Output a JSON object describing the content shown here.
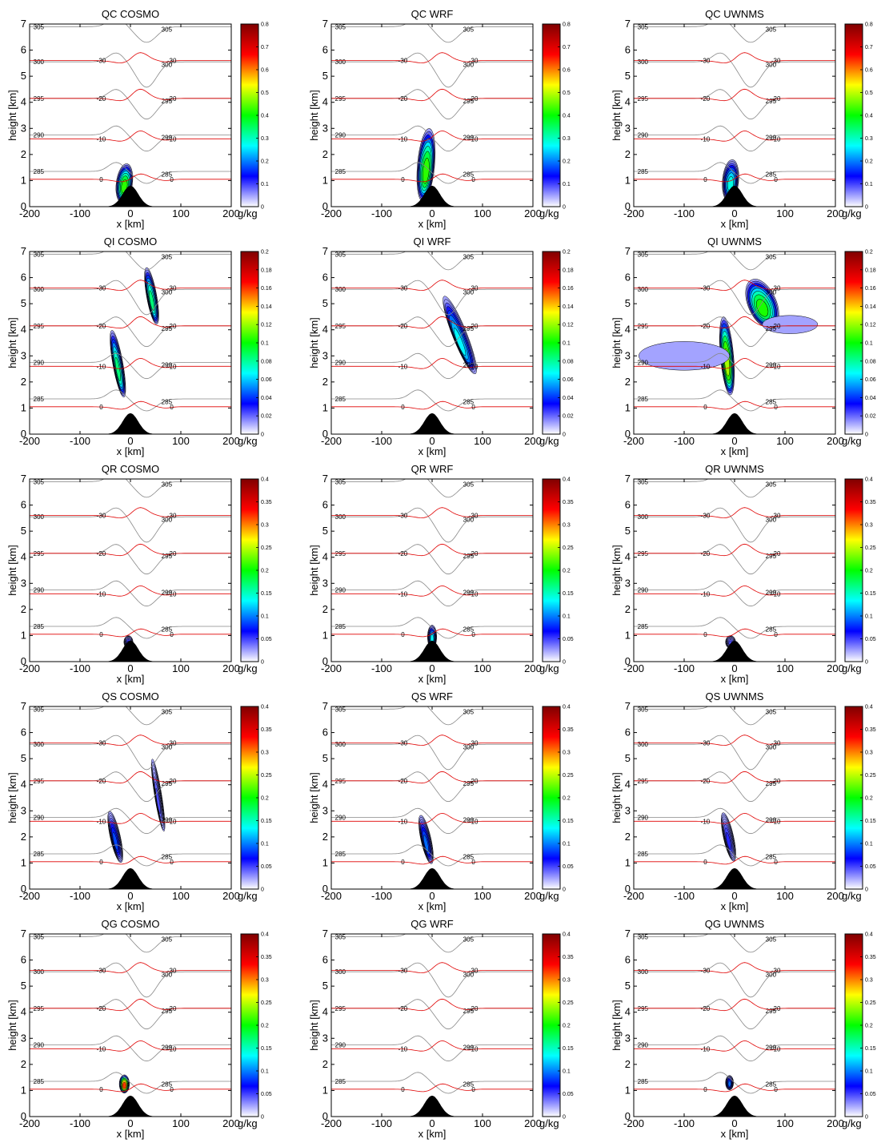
{
  "figure": {
    "rows": [
      {
        "variable": "QC",
        "cbar_max": 0.8,
        "cbar_ticks": [
          "0",
          "0.1",
          "0.2",
          "0.3",
          "0.4",
          "0.5",
          "0.6",
          "0.7",
          "0.8"
        ]
      },
      {
        "variable": "QI",
        "cbar_max": 0.2,
        "cbar_ticks": [
          "0",
          "0.02",
          "0.04",
          "0.06",
          "0.08",
          "0.1",
          "0.12",
          "0.14",
          "0.16",
          "0.18",
          "0.2"
        ]
      },
      {
        "variable": "QR",
        "cbar_max": 0.4,
        "cbar_ticks": [
          "0",
          "0.05",
          "0.1",
          "0.15",
          "0.2",
          "0.25",
          "0.3",
          "0.35",
          "0.4"
        ]
      },
      {
        "variable": "QS",
        "cbar_max": 0.4,
        "cbar_ticks": [
          "0",
          "0.05",
          "0.1",
          "0.15",
          "0.2",
          "0.25",
          "0.3",
          "0.35",
          "0.4"
        ]
      },
      {
        "variable": "QG",
        "cbar_max": 0.4,
        "cbar_ticks": [
          "0",
          "0.05",
          "0.1",
          "0.15",
          "0.2",
          "0.25",
          "0.3",
          "0.35",
          "0.4"
        ]
      }
    ],
    "models": [
      "COSMO",
      "WRF",
      "UWNMS"
    ],
    "xlabel": "x [km]",
    "ylabel": "height [km]",
    "cbar_unit": "g/kg",
    "xticks": [
      "-200",
      "-100",
      "0",
      "100",
      "200"
    ],
    "yticks": [
      "0",
      "1",
      "2",
      "3",
      "4",
      "5",
      "6",
      "7"
    ]
  },
  "chart_data": {
    "type": "contour-panels",
    "xlim": [
      -200,
      200
    ],
    "ylim": [
      0,
      7
    ],
    "colormap": [
      "#ffffff",
      "#0000ff",
      "#00ffff",
      "#00ff00",
      "#ffff00",
      "#ff0000",
      "#800000"
    ],
    "theta_isentropes": [
      {
        "label": "285",
        "base": 1.35,
        "perturb": -0.45
      },
      {
        "label": "290",
        "base": 2.75,
        "perturb": -0.6
      },
      {
        "label": "295",
        "base": 4.15,
        "perturb": -0.75
      },
      {
        "label": "300",
        "base": 5.55,
        "perturb": -0.9
      },
      {
        "label": "305",
        "base": 6.9,
        "perturb": -0.55
      }
    ],
    "temperature_isotherms": [
      {
        "label": "0",
        "base": 1.05,
        "perturb": 0.25
      },
      {
        "label": "-10",
        "base": 2.6,
        "perturb": 0.35
      },
      {
        "label": "-20",
        "base": 4.15,
        "perturb": 0.4
      },
      {
        "label": "-30",
        "base": 5.6,
        "perturb": 0.35
      }
    ],
    "mountain": {
      "center_km": 0,
      "height_km": 0.8,
      "halfwidth_km": 22
    },
    "panels": [
      {
        "row": "QC",
        "model": "COSMO",
        "peak": 0.45,
        "blobs": [
          {
            "x": -12,
            "y": 0.9,
            "rx": 16,
            "ry": 0.75,
            "tilt": -0.15,
            "peak": 0.45
          }
        ]
      },
      {
        "row": "QC",
        "model": "WRF",
        "peak": 0.45,
        "blobs": [
          {
            "x": -12,
            "y": 1.6,
            "rx": 17,
            "ry": 1.4,
            "tilt": -0.1,
            "peak": 0.45
          }
        ]
      },
      {
        "row": "QC",
        "model": "UWNMS",
        "peak": 0.3,
        "blobs": [
          {
            "x": -8,
            "y": 1.0,
            "rx": 16,
            "ry": 0.8,
            "tilt": -0.1,
            "peak": 0.3
          }
        ]
      },
      {
        "row": "QI",
        "model": "COSMO",
        "peak": 0.09,
        "blobs": [
          {
            "x": -25,
            "y": 2.7,
            "rx": 10,
            "ry": 1.3,
            "tilt": 0.2,
            "peak": 0.09
          },
          {
            "x": 42,
            "y": 5.3,
            "rx": 10,
            "ry": 1.1,
            "tilt": 0.2,
            "peak": 0.09
          }
        ]
      },
      {
        "row": "QI",
        "model": "WRF",
        "peak": 0.07,
        "blobs": [
          {
            "x": 55,
            "y": 3.8,
            "rx": 14,
            "ry": 1.6,
            "tilt": 0.45,
            "peak": 0.07
          }
        ]
      },
      {
        "row": "QI",
        "model": "UWNMS",
        "peak": 0.13,
        "blobs": [
          {
            "x": -15,
            "y": 3.0,
            "rx": 13,
            "ry": 1.5,
            "tilt": 0.1,
            "peak": 0.13
          },
          {
            "x": 55,
            "y": 5.0,
            "rx": 28,
            "ry": 1.0,
            "tilt": 0.5,
            "peak": 0.11
          },
          {
            "x": -100,
            "y": 3.0,
            "rx": 90,
            "ry": 0.55,
            "tilt": 0.0,
            "peak": 0.01
          },
          {
            "x": 110,
            "y": 4.2,
            "rx": 55,
            "ry": 0.35,
            "tilt": 0.0,
            "peak": 0.01
          }
        ]
      },
      {
        "row": "QR",
        "model": "COSMO",
        "peak": 0.06,
        "blobs": [
          {
            "x": -4,
            "y": 0.75,
            "rx": 9,
            "ry": 0.25,
            "tilt": 0.0,
            "peak": 0.06
          }
        ]
      },
      {
        "row": "QR",
        "model": "WRF",
        "peak": 0.14,
        "blobs": [
          {
            "x": 0,
            "y": 0.95,
            "rx": 9,
            "ry": 0.45,
            "tilt": 0.0,
            "peak": 0.14
          }
        ]
      },
      {
        "row": "QR",
        "model": "UWNMS",
        "peak": 0.05,
        "blobs": [
          {
            "x": -8,
            "y": 0.75,
            "rx": 10,
            "ry": 0.25,
            "tilt": 0.0,
            "peak": 0.05
          }
        ]
      },
      {
        "row": "QS",
        "model": "COSMO",
        "peak": 0.09,
        "blobs": [
          {
            "x": -30,
            "y": 2.0,
            "rx": 10,
            "ry": 1.0,
            "tilt": 0.25,
            "peak": 0.09
          },
          {
            "x": 55,
            "y": 3.6,
            "rx": 7,
            "ry": 1.4,
            "tilt": 0.18,
            "peak": 0.05
          }
        ]
      },
      {
        "row": "QS",
        "model": "WRF",
        "peak": 0.1,
        "blobs": [
          {
            "x": -12,
            "y": 1.9,
            "rx": 10,
            "ry": 0.95,
            "tilt": 0.25,
            "peak": 0.1
          }
        ]
      },
      {
        "row": "QS",
        "model": "UWNMS",
        "peak": 0.06,
        "blobs": [
          {
            "x": -12,
            "y": 2.0,
            "rx": 10,
            "ry": 0.95,
            "tilt": 0.25,
            "peak": 0.06
          }
        ]
      },
      {
        "row": "QG",
        "model": "COSMO",
        "peak": 0.34,
        "blobs": [
          {
            "x": -12,
            "y": 1.25,
            "rx": 10,
            "ry": 0.35,
            "tilt": 0.0,
            "peak": 0.34
          }
        ]
      },
      {
        "row": "QG",
        "model": "WRF",
        "peak": 0,
        "blobs": []
      },
      {
        "row": "QG",
        "model": "UWNMS",
        "peak": 0.1,
        "blobs": [
          {
            "x": -10,
            "y": 1.3,
            "rx": 8,
            "ry": 0.28,
            "tilt": 0.0,
            "peak": 0.1
          }
        ]
      }
    ]
  }
}
